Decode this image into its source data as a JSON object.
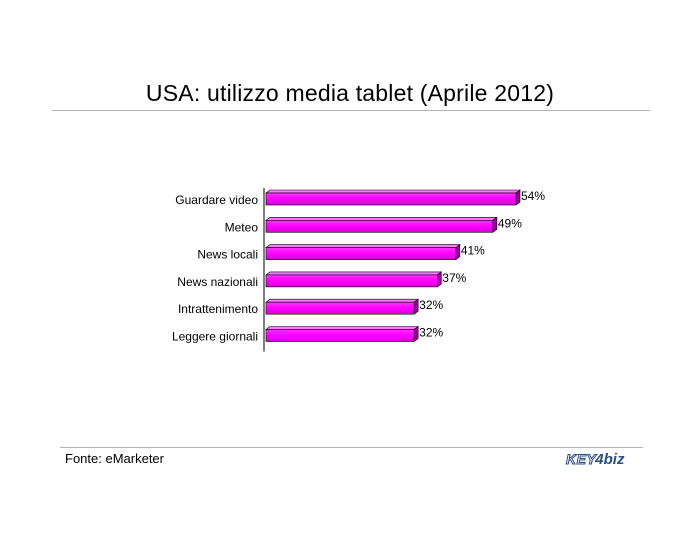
{
  "chart_data": {
    "type": "bar",
    "orientation": "horizontal",
    "style": "3d",
    "title": "USA: utilizzo media tablet (Aprile 2012)",
    "categories": [
      "Guardare video",
      "Meteo",
      "News locali",
      "News nazionali",
      "Intrattenimento",
      "Leggere giornali"
    ],
    "values": [
      54,
      49,
      41,
      37,
      32,
      32
    ],
    "value_labels": [
      "54%",
      "49%",
      "41%",
      "37%",
      "32%",
      "32%"
    ],
    "unit": "%",
    "xlim": [
      0,
      100
    ],
    "bar_color": "#ff00ff",
    "grid": false,
    "legend": "none"
  },
  "footer": {
    "source": "Fonte: eMarketer",
    "logo_text": "KEY4biz"
  }
}
